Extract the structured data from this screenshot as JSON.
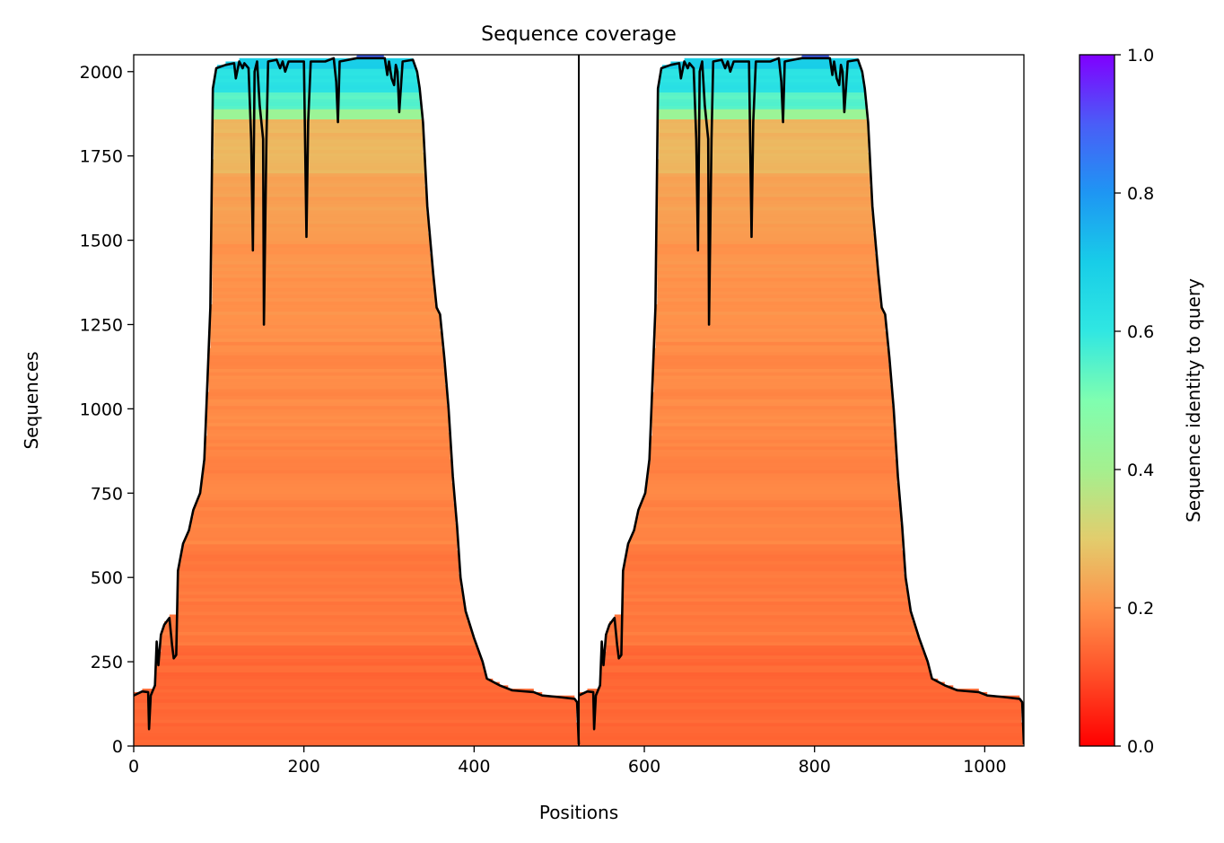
{
  "chart_data": {
    "type": "heatmap",
    "title": "Sequence coverage",
    "xlabel": "Positions",
    "ylabel": "Sequences",
    "xlim": [
      0,
      1046
    ],
    "ylim": [
      0,
      2050
    ],
    "x_ticks": [
      0,
      200,
      400,
      600,
      800,
      1000
    ],
    "y_ticks": [
      0,
      250,
      500,
      750,
      1000,
      1250,
      1500,
      1750,
      2000
    ],
    "chain_boundary": 523,
    "grid": false,
    "colormap": "rainbow",
    "colorbar": {
      "label": "Sequence identity to query",
      "range": [
        0,
        1
      ],
      "ticks": [
        "0.0",
        "0.2",
        "0.4",
        "0.6",
        "0.8",
        "1.0"
      ]
    },
    "coverage_segment": {
      "length": 523,
      "points": [
        [
          0,
          150
        ],
        [
          10,
          162
        ],
        [
          17,
          160
        ],
        [
          18,
          50
        ],
        [
          20,
          150
        ],
        [
          25,
          180
        ],
        [
          27,
          310
        ],
        [
          29,
          240
        ],
        [
          32,
          330
        ],
        [
          36,
          360
        ],
        [
          42,
          380
        ],
        [
          45,
          300
        ],
        [
          47,
          260
        ],
        [
          50,
          270
        ],
        [
          52,
          520
        ],
        [
          58,
          600
        ],
        [
          65,
          640
        ],
        [
          70,
          700
        ],
        [
          78,
          750
        ],
        [
          83,
          850
        ],
        [
          90,
          1300
        ],
        [
          93,
          1950
        ],
        [
          97,
          2010
        ],
        [
          108,
          2020
        ],
        [
          118,
          2025
        ],
        [
          120,
          1980
        ],
        [
          124,
          2030
        ],
        [
          128,
          2010
        ],
        [
          130,
          2025
        ],
        [
          135,
          2010
        ],
        [
          138,
          1800
        ],
        [
          140,
          1470
        ],
        [
          142,
          2000
        ],
        [
          145,
          2030
        ],
        [
          148,
          1900
        ],
        [
          152,
          1800
        ],
        [
          153,
          1250
        ],
        [
          156,
          1800
        ],
        [
          158,
          2030
        ],
        [
          168,
          2035
        ],
        [
          172,
          2010
        ],
        [
          175,
          2030
        ],
        [
          178,
          2000
        ],
        [
          182,
          2030
        ],
        [
          200,
          2030
        ],
        [
          203,
          1510
        ],
        [
          205,
          1850
        ],
        [
          208,
          2030
        ],
        [
          225,
          2030
        ],
        [
          235,
          2040
        ],
        [
          238,
          1970
        ],
        [
          240,
          1850
        ],
        [
          242,
          2030
        ],
        [
          262,
          2040
        ],
        [
          295,
          2040
        ],
        [
          298,
          1990
        ],
        [
          300,
          2030
        ],
        [
          303,
          1980
        ],
        [
          306,
          1960
        ],
        [
          308,
          2020
        ],
        [
          310,
          2000
        ],
        [
          312,
          1880
        ],
        [
          316,
          2030
        ],
        [
          328,
          2035
        ],
        [
          333,
          2000
        ],
        [
          336,
          1950
        ],
        [
          340,
          1850
        ],
        [
          345,
          1600
        ],
        [
          352,
          1400
        ],
        [
          356,
          1300
        ],
        [
          360,
          1280
        ],
        [
          365,
          1150
        ],
        [
          370,
          1000
        ],
        [
          375,
          800
        ],
        [
          380,
          650
        ],
        [
          384,
          500
        ],
        [
          390,
          400
        ],
        [
          400,
          320
        ],
        [
          410,
          250
        ],
        [
          415,
          200
        ],
        [
          430,
          180
        ],
        [
          445,
          165
        ],
        [
          470,
          160
        ],
        [
          480,
          150
        ],
        [
          500,
          145
        ],
        [
          518,
          140
        ],
        [
          521,
          130
        ],
        [
          523,
          5
        ]
      ]
    },
    "identity_bands": [
      {
        "row_from": 0,
        "row_to": 300,
        "identity": 0.14
      },
      {
        "row_from": 300,
        "row_to": 600,
        "identity": 0.165
      },
      {
        "row_from": 600,
        "row_to": 900,
        "identity": 0.18
      },
      {
        "row_from": 900,
        "row_to": 1200,
        "identity": 0.19
      },
      {
        "row_from": 1200,
        "row_to": 1500,
        "identity": 0.205
      },
      {
        "row_from": 1500,
        "row_to": 1700,
        "identity": 0.225
      },
      {
        "row_from": 1700,
        "row_to": 1860,
        "identity": 0.26
      },
      {
        "row_from": 1860,
        "row_to": 1885,
        "identity": 0.42
      },
      {
        "row_from": 1885,
        "row_to": 1940,
        "identity": 0.55
      },
      {
        "row_from": 1940,
        "row_to": 2010,
        "identity": 0.62
      },
      {
        "row_from": 2010,
        "row_to": 2040,
        "identity": 0.7
      },
      {
        "row_from": 2040,
        "row_to": 2050,
        "identity": 0.88
      }
    ]
  }
}
